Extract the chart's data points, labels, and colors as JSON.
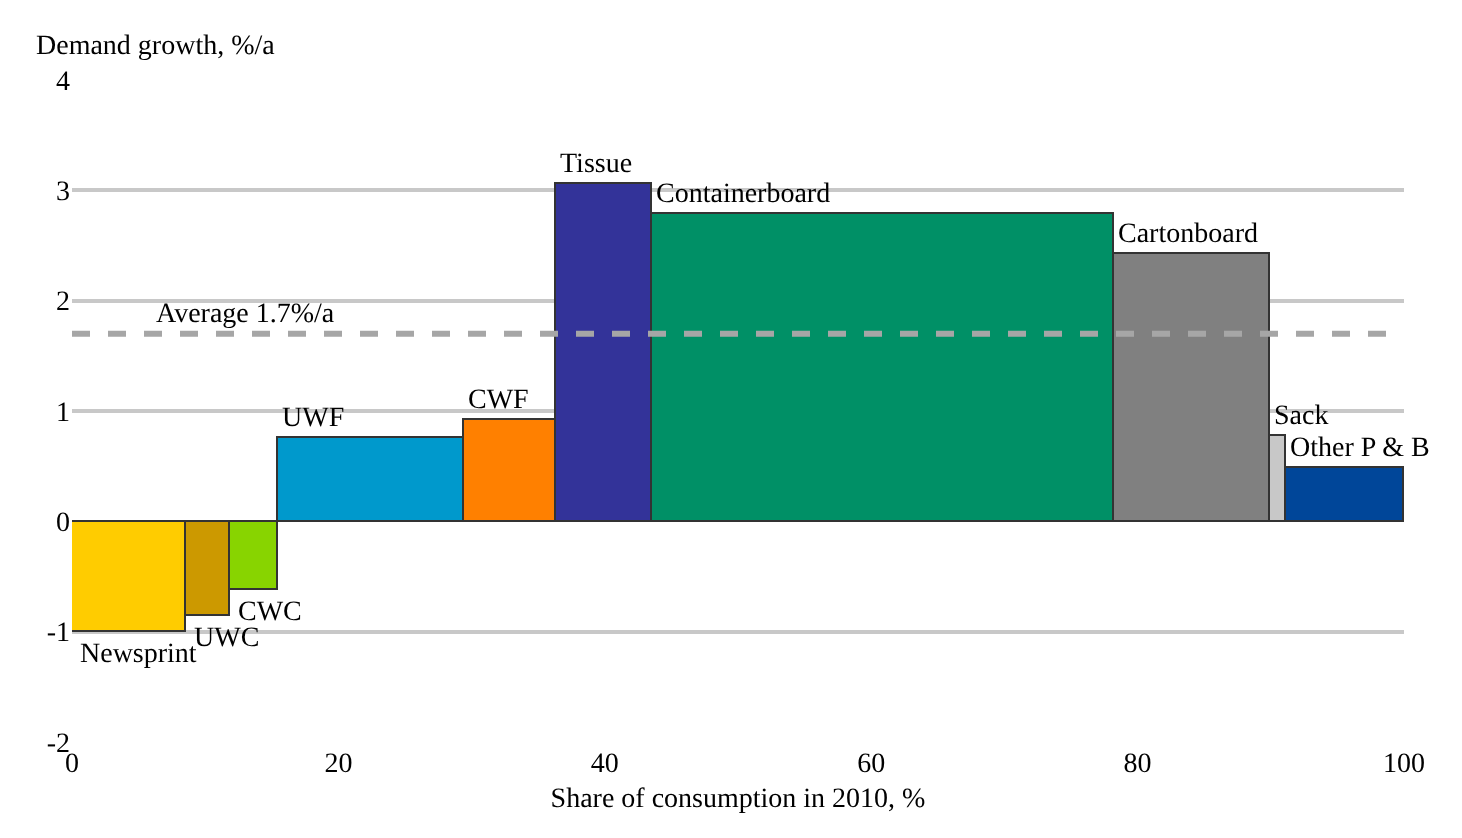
{
  "chart_data": {
    "type": "histogram",
    "ylabel": "Demand growth, %/a",
    "xlabel": "Share of consumption in 2010, %",
    "bins": [
      0,
      8.5,
      11.8,
      15.5,
      29.4,
      36.4,
      43.6,
      78.2,
      89.9,
      91.1,
      100
    ],
    "values": [
      -1.0,
      -0.85,
      -0.63,
      0.75,
      0.92,
      3.06,
      2.79,
      2.42,
      0.77,
      0.49
    ],
    "colors": [
      "#ffcc00",
      "#cc9900",
      "#88d400",
      "#0099cc",
      "#ff8000",
      "#333399",
      "#009066",
      "#808080",
      "#c8c8c8",
      "#004699"
    ],
    "annotations": [
      {
        "text": "Newsprint",
        "x": 4.25,
        "y": -1.0
      },
      {
        "text": "UWC",
        "x": 10.15,
        "y": -0.85
      },
      {
        "text": "CWC",
        "x": 13.65,
        "y": -0.63
      },
      {
        "text": "UWF",
        "x": 22.45,
        "y": 0.75
      },
      {
        "text": "CWF",
        "x": 32.9,
        "y": 0.92
      },
      {
        "text": "Tissue",
        "x": 40,
        "y": 3.06
      },
      {
        "text": "Containerboard",
        "x": 60.9,
        "y": 2.79
      },
      {
        "text": "Cartonboard",
        "x": 84.05,
        "y": 2.42
      },
      {
        "text": "Sack",
        "x": 90.5,
        "y": 0.77
      },
      {
        "text": "Other P & B",
        "x": 95.55,
        "y": 0.49
      }
    ],
    "ref_lines": [
      {
        "axis": "y",
        "value": 1.7,
        "label": "Average 1.7%/a",
        "color": "#a6a6a6",
        "line_style": "dashed"
      }
    ],
    "xlim": [
      0,
      100
    ],
    "xticks": [
      0,
      20,
      40,
      60,
      80,
      100
    ],
    "ylim": [
      -2,
      4
    ],
    "yticks": [
      -2,
      -1,
      0,
      1,
      2,
      3,
      4
    ],
    "grid": "y"
  }
}
